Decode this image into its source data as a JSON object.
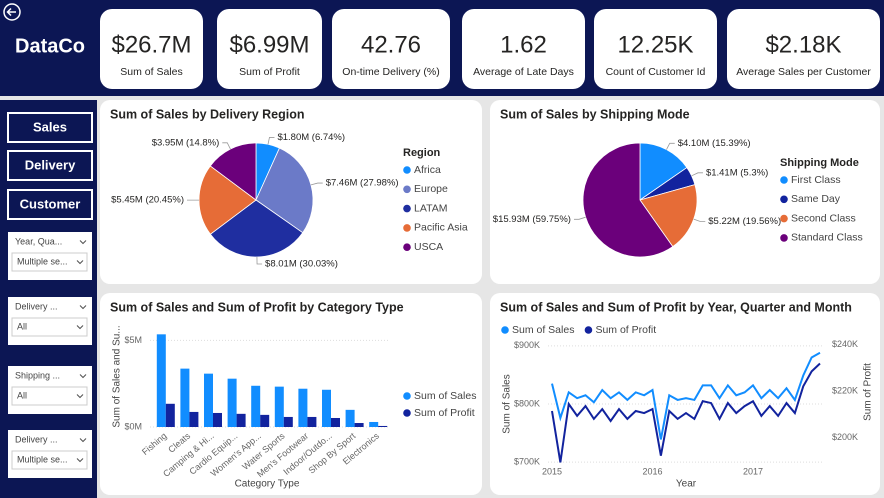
{
  "header": {
    "title": "DataCo"
  },
  "kpis": [
    {
      "value": "$26.7M",
      "label": "Sum of Sales"
    },
    {
      "value": "$6.99M",
      "label": "Sum of Profit"
    },
    {
      "value": "42.76",
      "label": "On-time Delivery (%)"
    },
    {
      "value": "1.62",
      "label": "Average of Late Days"
    },
    {
      "value": "12.25K",
      "label": "Count of Customer Id"
    },
    {
      "value": "$2.18K",
      "label": "Average Sales per Customer"
    }
  ],
  "nav": [
    "Sales",
    "Delivery",
    "Customer"
  ],
  "slicers": [
    {
      "label": "Year, Qua...",
      "value": "Multiple se..."
    },
    {
      "label": "Delivery ...",
      "value": "All"
    },
    {
      "label": "Shipping ...",
      "value": "All"
    },
    {
      "label": "Delivery ...",
      "value": "Multiple se..."
    }
  ],
  "chart_data": [
    {
      "type": "pie",
      "title": "Sum of Sales by Delivery Region",
      "legend_title": "Region",
      "legend": "right",
      "categories": [
        "Africa",
        "Europe",
        "LATAM",
        "Pacific Asia",
        "USCA"
      ],
      "values": [
        1.8,
        7.46,
        8.01,
        5.45,
        3.95
      ],
      "value_labels": [
        "$1.80M (6.74%)",
        "$7.46M (27.98%)",
        "$8.01M (30.03%)",
        "$5.45M (20.45%)",
        "$3.95M (14.8%)"
      ],
      "colors": [
        "#118DFF",
        "#6B7AC8",
        "#1F2EA0",
        "#E66C37",
        "#6B007B"
      ]
    },
    {
      "type": "pie",
      "title": "Sum of Sales by Shipping Mode",
      "legend_title": "Shipping Mode",
      "legend": "right",
      "categories": [
        "First Class",
        "Same Day",
        "Second Class",
        "Standard Class"
      ],
      "values": [
        4.1,
        1.41,
        5.22,
        15.93
      ],
      "value_labels": [
        "$4.10M (15.39%)",
        "$1.41M (5.3%)",
        "$5.22M (19.56%)",
        "$15.93M (59.75%)"
      ],
      "colors": [
        "#118DFF",
        "#12239E",
        "#E66C37",
        "#6B007B"
      ]
    },
    {
      "type": "bar",
      "title": "Sum of Sales and Sum of Profit by Category Type",
      "x_label": "Category Type",
      "y_label": "Sum of Sales and Su...",
      "legend": "right",
      "categories": [
        "Fishing",
        "Cleats",
        "Camping & Hi...",
        "Cardio Equip...",
        "Women's App...",
        "Water Sports",
        "Men's Footwear",
        "Indoor/Outdo...",
        "Shop By Sport",
        "Electronics"
      ],
      "series": [
        {
          "name": "Sum of Sales",
          "color": "#118DFF",
          "values": [
            5.35,
            3.37,
            3.08,
            2.79,
            2.38,
            2.33,
            2.21,
            2.15,
            0.99,
            0.29
          ]
        },
        {
          "name": "Sum of Profit",
          "color": "#12239E",
          "values": [
            1.34,
            0.87,
            0.81,
            0.76,
            0.7,
            0.58,
            0.58,
            0.52,
            0.23,
            0.06
          ]
        }
      ],
      "ylim": [
        0,
        5.6
      ],
      "yticks": [
        {
          "value": 0,
          "label": "$0M"
        },
        {
          "value": 5,
          "label": "$5M"
        }
      ],
      "grid": true
    },
    {
      "type": "line",
      "title": "Sum of Sales and Sum of Profit by Year, Quarter and Month",
      "x_label": "Year",
      "y_label": "Sum of Sales",
      "y2_label": "Sum of Profit",
      "legend": "top",
      "categories": [
        "2015",
        null,
        null,
        null,
        null,
        null,
        null,
        null,
        null,
        null,
        null,
        null,
        "2016",
        null,
        null,
        null,
        null,
        null,
        null,
        null,
        null,
        null,
        null,
        null,
        "2017",
        null,
        null,
        null,
        null,
        null,
        null,
        null,
        null
      ],
      "series": [
        {
          "name": "Sum of Sales",
          "color": "#118DFF",
          "values": [
            835,
            776,
            820,
            810,
            815,
            803,
            824,
            810,
            820,
            807,
            820,
            815,
            824,
            739,
            815,
            807,
            810,
            807,
            832,
            832,
            810,
            832,
            815,
            820,
            832,
            810,
            824,
            810,
            827,
            807,
            849,
            880,
            888
          ]
        },
        {
          "name": "Sum of Profit",
          "color": "#12239E",
          "axis": "y2",
          "values": [
            211.5,
            189.4,
            214.5,
            209.4,
            213.6,
            208.1,
            212.3,
            207.2,
            212.3,
            208.1,
            211.5,
            210.6,
            212.3,
            192.3,
            211.5,
            208.1,
            210.6,
            208.1,
            215.7,
            214.9,
            208.1,
            214.9,
            210.6,
            213.6,
            215.7,
            209.4,
            213.6,
            209.4,
            214.9,
            210.6,
            222.1,
            228.5,
            231.9
          ]
        }
      ],
      "ylim": [
        690,
        910
      ],
      "yticks": [
        {
          "value": 700,
          "label": "$700K"
        },
        {
          "value": 800,
          "label": "$800K"
        },
        {
          "value": 900,
          "label": "$900K"
        }
      ],
      "y2lim": [
        187,
        242
      ],
      "y2ticks": [
        {
          "value": 200,
          "label": "$200K"
        },
        {
          "value": 220,
          "label": "$220K"
        },
        {
          "value": 240,
          "label": "$240K"
        }
      ],
      "grid": true
    }
  ]
}
